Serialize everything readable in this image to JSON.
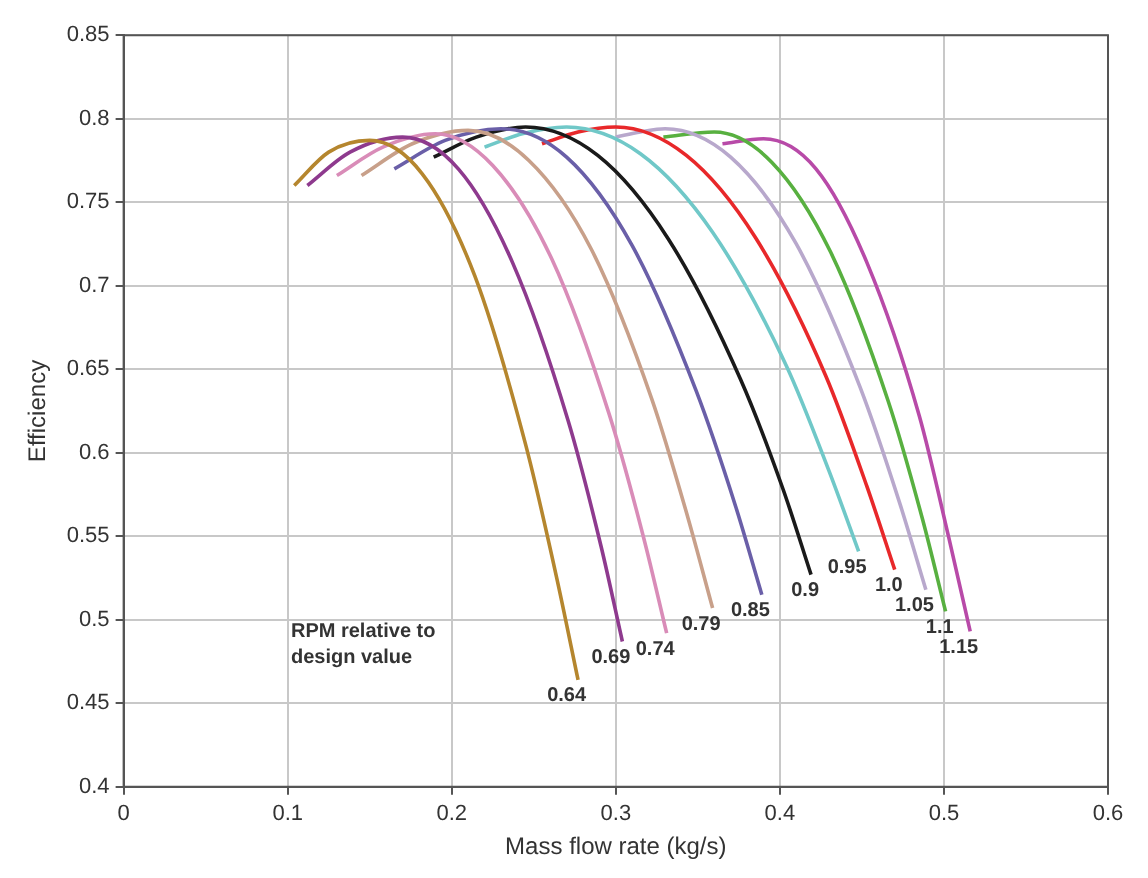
{
  "chart_data": {
    "type": "line",
    "xlabel": "Mass flow rate (kg/s)",
    "ylabel": "Efficiency",
    "xlim": [
      0,
      0.6
    ],
    "xticks": [
      0,
      0.1,
      0.2,
      0.3,
      0.4,
      0.5,
      0.6
    ],
    "ylim": [
      0.4,
      0.85
    ],
    "yticks": [
      0.4,
      0.45,
      0.5,
      0.55,
      0.6,
      0.65,
      0.7,
      0.75,
      0.8,
      0.85
    ],
    "grid": true,
    "legend": false,
    "marker": "none",
    "line_style": "solid",
    "annotations": [
      "RPM relative to design value"
    ],
    "series": [
      {
        "name": "0.64",
        "color": "#b5862e",
        "x": [
          0.104,
          0.125,
          0.15,
          0.182,
          0.214,
          0.245,
          0.264,
          0.277
        ],
        "values": [
          0.76,
          0.78,
          0.787,
          0.767,
          0.706,
          0.605,
          0.525,
          0.464
        ]
      },
      {
        "name": "0.69",
        "color": "#8e3a8e",
        "x": [
          0.112,
          0.138,
          0.17,
          0.204,
          0.237,
          0.271,
          0.291,
          0.304
        ],
        "values": [
          0.76,
          0.78,
          0.789,
          0.77,
          0.714,
          0.619,
          0.544,
          0.487
        ]
      },
      {
        "name": "0.74",
        "color": "#d98cb8",
        "x": [
          0.13,
          0.158,
          0.19,
          0.225,
          0.261,
          0.296,
          0.317,
          0.331
        ],
        "values": [
          0.766,
          0.783,
          0.791,
          0.772,
          0.716,
          0.623,
          0.549,
          0.492
        ]
      },
      {
        "name": "0.79",
        "color": "#c8a08a",
        "x": [
          0.145,
          0.176,
          0.21,
          0.247,
          0.285,
          0.322,
          0.344,
          0.359
        ],
        "values": [
          0.766,
          0.785,
          0.793,
          0.775,
          0.722,
          0.632,
          0.561,
          0.507
        ]
      },
      {
        "name": "0.85",
        "color": "#6a5fa8",
        "x": [
          0.165,
          0.196,
          0.23,
          0.27,
          0.31,
          0.349,
          0.373,
          0.389
        ],
        "values": [
          0.77,
          0.787,
          0.794,
          0.777,
          0.724,
          0.637,
          0.568,
          0.515
        ]
      },
      {
        "name": "0.9",
        "color": "#1a1a1a",
        "x": [
          0.189,
          0.215,
          0.245,
          0.289,
          0.332,
          0.376,
          0.402,
          0.419
        ],
        "values": [
          0.777,
          0.789,
          0.795,
          0.778,
          0.728,
          0.644,
          0.578,
          0.527
        ]
      },
      {
        "name": "0.95",
        "color": "#70c8c8",
        "x": [
          0.22,
          0.243,
          0.27,
          0.315,
          0.359,
          0.404,
          0.43,
          0.448
        ],
        "values": [
          0.783,
          0.791,
          0.795,
          0.779,
          0.732,
          0.652,
          0.589,
          0.541
        ]
      },
      {
        "name": "1.0",
        "color": "#e8282a",
        "x": [
          0.255,
          0.277,
          0.3,
          0.343,
          0.385,
          0.428,
          0.453,
          0.47
        ],
        "values": [
          0.785,
          0.792,
          0.795,
          0.778,
          0.729,
          0.646,
          0.58,
          0.53
        ]
      },
      {
        "name": "1.05",
        "color": "#b8a8cc",
        "x": [
          0.3,
          0.315,
          0.33,
          0.37,
          0.41,
          0.449,
          0.473,
          0.489
        ],
        "values": [
          0.789,
          0.792,
          0.794,
          0.777,
          0.725,
          0.639,
          0.57,
          0.518
        ]
      },
      {
        "name": "1.1",
        "color": "#58b040",
        "x": [
          0.329,
          0.36,
          0.395,
          0.431,
          0.466,
          0.487,
          0.501
        ],
        "values": [
          0.789,
          0.792,
          0.774,
          0.72,
          0.631,
          0.56,
          0.505
        ]
      },
      {
        "name": "1.15",
        "color": "#b84aa8",
        "x": [
          0.365,
          0.39,
          0.422,
          0.453,
          0.485,
          0.503,
          0.516
        ],
        "values": [
          0.785,
          0.788,
          0.77,
          0.714,
          0.622,
          0.549,
          0.493
        ]
      }
    ]
  }
}
